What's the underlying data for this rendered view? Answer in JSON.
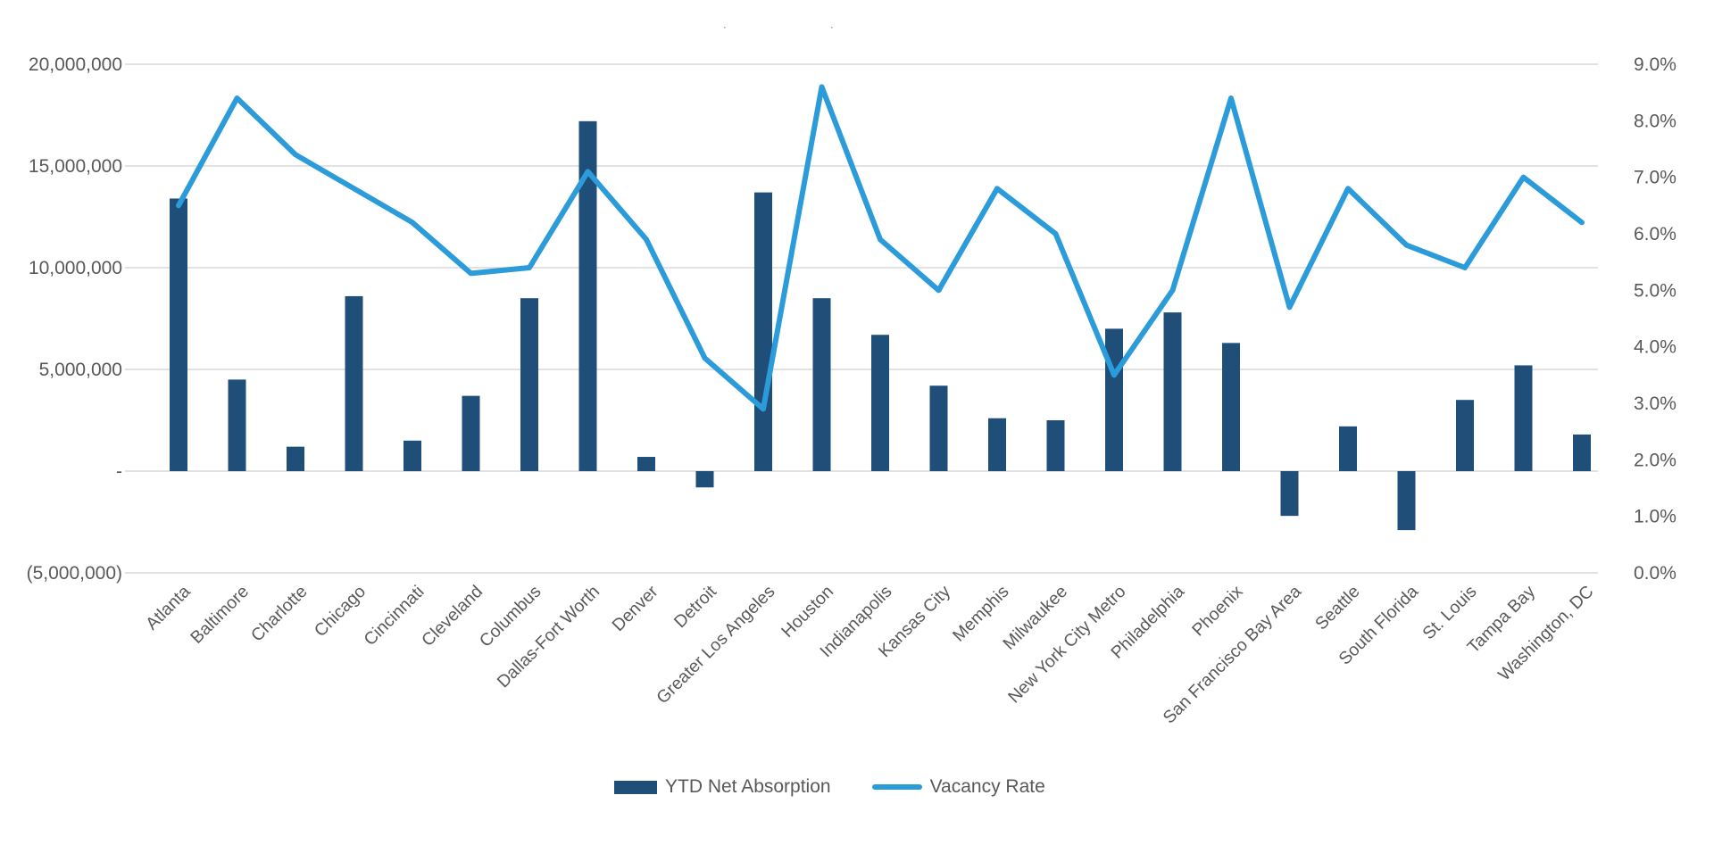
{
  "header": {
    "dots": [
      "·",
      "·"
    ]
  },
  "legend": {
    "items": [
      "YTD Net Absorption",
      "Vacancy Rate"
    ]
  },
  "colors": {
    "bar": "#1F4E79",
    "line": "#2B9CD9",
    "gridline": "#D9D9D9",
    "axis_text": "#595959",
    "background": "#FFFFFF"
  },
  "chart_data": {
    "type": "bar+line combo",
    "title": "",
    "categories": [
      "Atlanta",
      "Baltimore",
      "Charlotte",
      "Chicago",
      "Cincinnati",
      "Cleveland",
      "Columbus",
      "Dallas-Fort Worth",
      "Denver",
      "Detroit",
      "Greater Los Angeles",
      "Houston",
      "Indianapolis",
      "Kansas City",
      "Memphis",
      "Milwaukee",
      "New York City Metro",
      "Philadelphia",
      "Phoenix",
      "San Francisco Bay Area",
      "Seattle",
      "South Florida",
      "St. Louis",
      "Tampa Bay",
      "Washington, DC"
    ],
    "series": [
      {
        "name": "YTD Net Absorption",
        "type": "bar",
        "axis": "left",
        "color": "#1F4E79",
        "values": [
          13400000,
          4500000,
          1200000,
          8600000,
          1500000,
          3700000,
          8500000,
          17200000,
          700000,
          -800000,
          13700000,
          8500000,
          6700000,
          4200000,
          2600000,
          2500000,
          7000000,
          7800000,
          6300000,
          -2200000,
          2200000,
          -2900000,
          3500000,
          5200000,
          1800000
        ]
      },
      {
        "name": "Vacancy Rate",
        "type": "line",
        "axis": "right",
        "color": "#2B9CD9",
        "unit": "%",
        "values": [
          6.5,
          8.4,
          7.4,
          6.8,
          6.2,
          5.3,
          5.4,
          7.1,
          5.9,
          3.8,
          2.9,
          8.6,
          5.9,
          5.0,
          6.8,
          6.0,
          3.5,
          5.0,
          8.4,
          4.7,
          6.8,
          5.8,
          5.4,
          7.0,
          6.2
        ]
      }
    ],
    "left_axis": {
      "min": -5000000,
      "max": 20000000,
      "tick_values": [
        20000000,
        15000000,
        10000000,
        5000000,
        0,
        -5000000
      ],
      "tick_labels": [
        "20,000,000",
        "15,000,000",
        "10,000,000",
        "5,000,000",
        "-",
        "(5,000,000)"
      ]
    },
    "right_axis": {
      "min": 0,
      "max": 9,
      "tick_values": [
        9,
        8,
        7,
        6,
        5,
        4,
        3,
        2,
        1,
        0
      ],
      "tick_labels": [
        "9.0%",
        "8.0%",
        "7.0%",
        "6.0%",
        "5.0%",
        "4.0%",
        "3.0%",
        "2.0%",
        "1.0%",
        "0.0%"
      ]
    },
    "grid": true,
    "legend_position": "bottom"
  }
}
